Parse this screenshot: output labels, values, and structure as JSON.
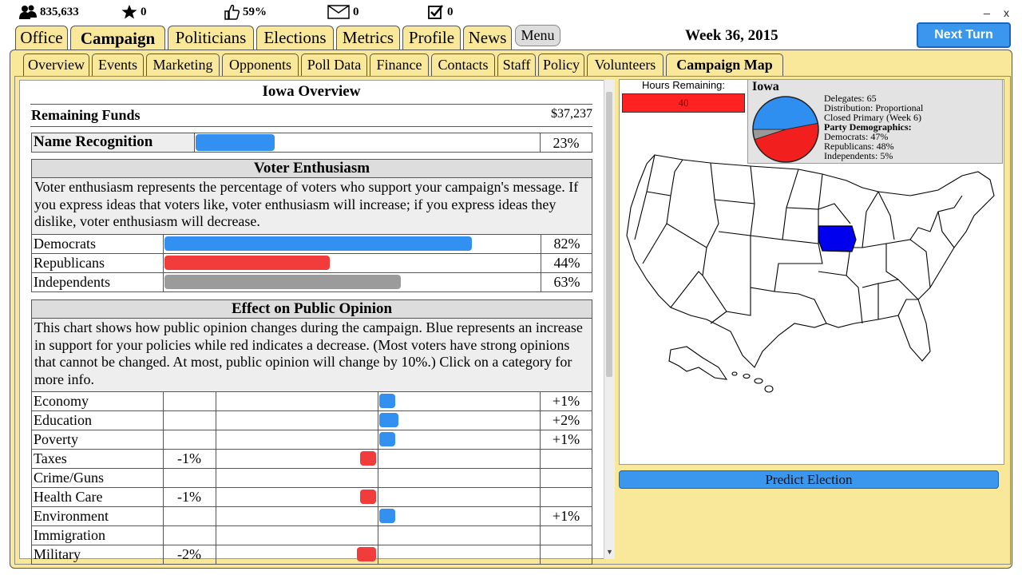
{
  "stats": {
    "followers": "835,633",
    "stars": "0",
    "approval": "59%",
    "messages": "0",
    "tasks": "0"
  },
  "window": {
    "minimize": "_",
    "close": "x"
  },
  "nav_tabs": [
    "Office",
    "Campaign",
    "Politicians",
    "Elections",
    "Metrics",
    "Profile",
    "News"
  ],
  "menu_label": "Menu",
  "week_label": "Week 36, 2015",
  "next_turn_label": "Next Turn",
  "sub_tabs": [
    "Overview",
    "Events",
    "Marketing",
    "Opponents",
    "Poll Data",
    "Finance",
    "Contacts",
    "Staff",
    "Policy",
    "Volunteers",
    "Campaign Map"
  ],
  "overview": {
    "title": "Iowa Overview",
    "remaining_funds_label": "Remaining Funds",
    "remaining_funds_value": "$37,237",
    "name_recognition_label": "Name Recognition",
    "name_recognition_value": "23%",
    "name_recognition_fraction": 0.23
  },
  "voter_enthusiasm": {
    "title": "Voter Enthusiasm",
    "description": "Voter enthusiasm represents the percentage of voters who support your campaign's message. If you express ideas that voters like, voter enthusiasm will increase; if you express ideas they dislike, voter enthusiasm will decrease.",
    "rows": [
      {
        "label": "Democrats",
        "value": "82%",
        "fraction": 0.82,
        "color": "#3290f0"
      },
      {
        "label": "Republicans",
        "value": "44%",
        "fraction": 0.44,
        "color": "#f23b3b"
      },
      {
        "label": "Independents",
        "value": "63%",
        "fraction": 0.63,
        "color": "#9b9b9b"
      }
    ]
  },
  "public_opinion": {
    "title": "Effect on Public Opinion",
    "description": "This chart shows how public opinion changes during the campaign. Blue represents an increase in support for your policies while red indicates a decrease. (Most voters have strong opinions that cannot be changed. At most, public opinion will change by 10%.) Click on a category for more info.",
    "rows": [
      {
        "label": "Economy",
        "neg": "",
        "pos": "+1%",
        "change": 1
      },
      {
        "label": "Education",
        "neg": "",
        "pos": "+2%",
        "change": 2
      },
      {
        "label": "Poverty",
        "neg": "",
        "pos": "+1%",
        "change": 1
      },
      {
        "label": "Taxes",
        "neg": "-1%",
        "pos": "",
        "change": -1
      },
      {
        "label": "Crime/Guns",
        "neg": "",
        "pos": "",
        "change": 0
      },
      {
        "label": "Health Care",
        "neg": "-1%",
        "pos": "",
        "change": -1
      },
      {
        "label": "Environment",
        "neg": "",
        "pos": "+1%",
        "change": 1
      },
      {
        "label": "Immigration",
        "neg": "",
        "pos": "",
        "change": 0
      },
      {
        "label": "Military",
        "neg": "-2%",
        "pos": "",
        "change": -2
      }
    ]
  },
  "map_panel": {
    "hours_label": "Hours Remaining:",
    "hours_value": "40",
    "state_name": "Iowa",
    "delegates": "Delegates: 65",
    "distribution": "Distribution: Proportional",
    "primary": "Closed Primary (Week 6)",
    "demographics_label": "Party Demographics:",
    "democrats": "Democrats: 47%",
    "republicans": "Republicans: 48%",
    "independents": "Independents: 5%",
    "pie": [
      {
        "name": "Democrats",
        "fraction": 0.47,
        "color": "#2f8ff0"
      },
      {
        "name": "Republicans",
        "fraction": 0.48,
        "color": "#f21f1f"
      },
      {
        "name": "Independents",
        "fraction": 0.05,
        "color": "#999999"
      }
    ],
    "highlight_color": "#0000ee",
    "predict_label": "Predict Election"
  }
}
